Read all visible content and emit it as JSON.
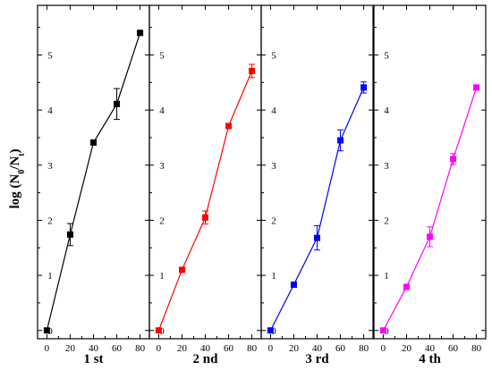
{
  "chart_data": {
    "type": "line",
    "ylabel_main": "log (N",
    "ylabel_sub0": "0",
    "ylabel_slash": "/N",
    "ylabel_subt": "t",
    "ylabel_close": ")",
    "xlim": [
      -8,
      88
    ],
    "ylim": [
      -0.15,
      5.9
    ],
    "xticks": [
      0,
      20,
      40,
      60,
      80
    ],
    "yticks": [
      0,
      1,
      2,
      3,
      4,
      5
    ],
    "grid": false,
    "panels": [
      {
        "label": "1 st",
        "color": "#000000",
        "x": [
          0,
          20,
          40,
          60,
          80
        ],
        "y": [
          0,
          1.74,
          3.41,
          4.11,
          5.4
        ],
        "err": [
          0.03,
          0.2,
          0.04,
          0.28,
          0.03
        ]
      },
      {
        "label": "2 nd",
        "color": "#ff0000",
        "x": [
          0,
          20,
          40,
          60,
          80
        ],
        "y": [
          0,
          1.1,
          2.05,
          3.71,
          4.71
        ],
        "err": [
          0.03,
          0.04,
          0.12,
          0.04,
          0.12
        ]
      },
      {
        "label": "3 rd",
        "color": "#0000ff",
        "x": [
          0,
          20,
          40,
          60,
          80
        ],
        "y": [
          0,
          0.83,
          1.68,
          3.45,
          4.41
        ],
        "err": [
          0.03,
          0.04,
          0.22,
          0.19,
          0.1
        ]
      },
      {
        "label": "4 th",
        "color": "#ff00ff",
        "x": [
          0,
          20,
          40,
          60,
          80
        ],
        "y": [
          0,
          0.79,
          1.7,
          3.11,
          4.41
        ],
        "err": [
          0.03,
          0.04,
          0.18,
          0.1,
          0.04
        ]
      }
    ]
  }
}
